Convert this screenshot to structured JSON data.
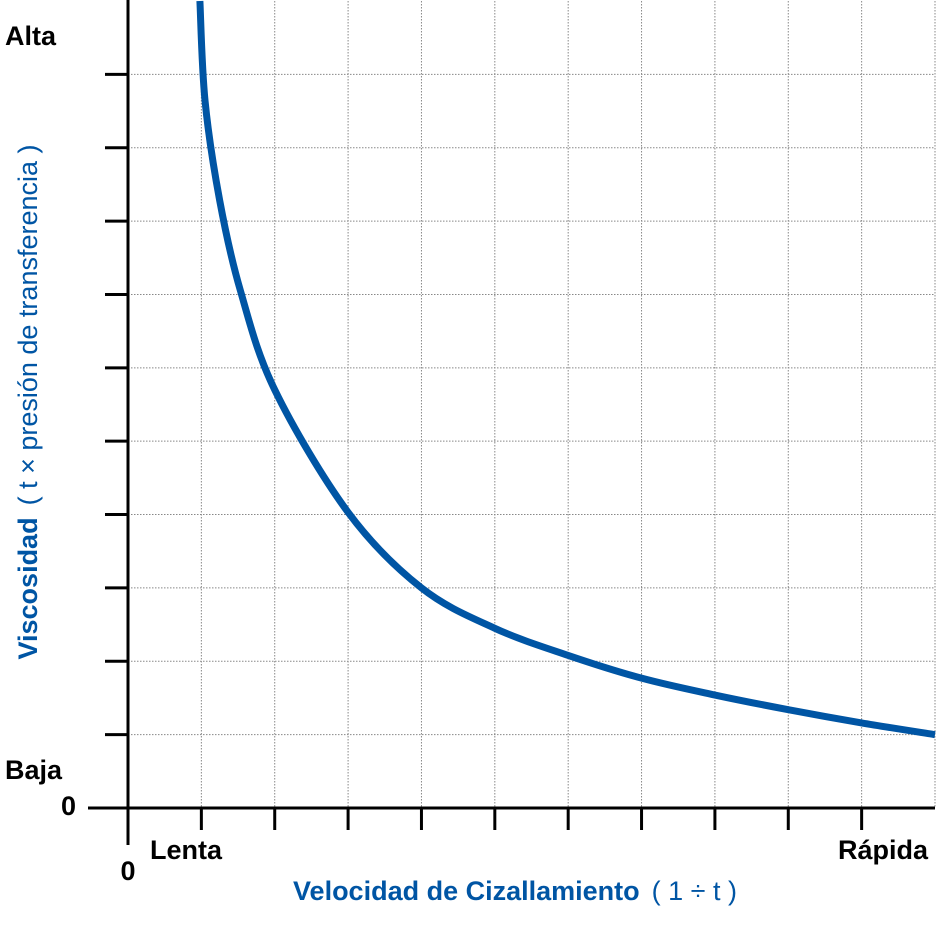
{
  "chart_data": {
    "type": "line",
    "y_title_bold": "Viscosidad",
    "y_title_rest": "( t × presión de transferencia )",
    "x_title_bold": "Velocidad de Cizallamiento",
    "x_title_rest": "( 1 ÷ t )",
    "y_high_label": "Alta",
    "y_low_label": "Baja",
    "x_low_label": "Lenta",
    "x_high_label": "Rápida",
    "xlim": [
      0,
      11
    ],
    "ylim": [
      0,
      11
    ],
    "xticks": [
      0,
      1,
      2,
      3,
      4,
      5,
      6,
      7,
      8,
      9,
      10
    ],
    "yticks": [
      0,
      1,
      2,
      3,
      4,
      5,
      6,
      7,
      8,
      9,
      10
    ],
    "grid": true,
    "series": [
      {
        "color": "#0055a4",
        "x": [
          0.98,
          1.05,
          1.25,
          1.53,
          2.0,
          3.0,
          4.0,
          5.0,
          6.0,
          7.0,
          8.0,
          9.0,
          10.0,
          11.0
        ],
        "values": [
          11,
          9.64,
          8.28,
          7.06,
          5.7,
          4.03,
          3.0,
          2.45,
          2.08,
          1.77,
          1.54,
          1.34,
          1.16,
          1.0
        ]
      }
    ]
  }
}
